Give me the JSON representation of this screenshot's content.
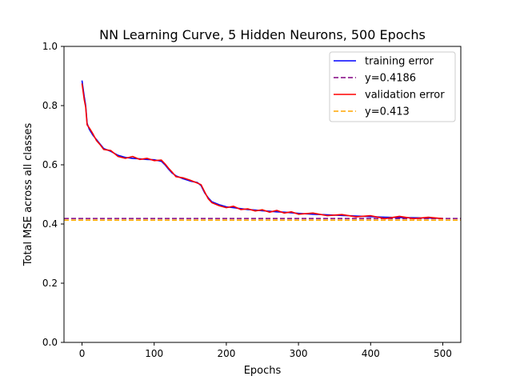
{
  "chart_data": {
    "type": "line",
    "title": "NN Learning Curve, 5 Hidden Neurons, 500 Epochs",
    "xlabel": "Epochs",
    "ylabel": "Total MSE across all classes",
    "xlim": [
      -25,
      525
    ],
    "ylim": [
      0.0,
      1.0
    ],
    "xticks": [
      0,
      100,
      200,
      300,
      400,
      500
    ],
    "xtick_labels": [
      "0",
      "100",
      "200",
      "300",
      "400",
      "500"
    ],
    "yticks": [
      0.0,
      0.2,
      0.4,
      0.6,
      0.8,
      1.0
    ],
    "ytick_labels": [
      "0.0",
      "0.2",
      "0.4",
      "0.6",
      "0.8",
      "1.0"
    ],
    "grid": false,
    "legend_position": "top-right",
    "series": [
      {
        "name": "training error",
        "style": "solid",
        "color": "#0000ff",
        "x": [
          0,
          3,
          5,
          7,
          10,
          15,
          20,
          25,
          30,
          40,
          50,
          60,
          70,
          80,
          90,
          100,
          110,
          115,
          120,
          125,
          130,
          140,
          150,
          160,
          165,
          170,
          175,
          180,
          190,
          200,
          210,
          220,
          230,
          240,
          250,
          260,
          270,
          280,
          290,
          300,
          320,
          340,
          360,
          380,
          400,
          420,
          440,
          460,
          480,
          500
        ],
        "y": [
          0.885,
          0.83,
          0.8,
          0.74,
          0.72,
          0.7,
          0.685,
          0.67,
          0.655,
          0.645,
          0.632,
          0.625,
          0.622,
          0.62,
          0.618,
          0.617,
          0.612,
          0.6,
          0.585,
          0.572,
          0.563,
          0.553,
          0.545,
          0.54,
          0.53,
          0.505,
          0.488,
          0.475,
          0.465,
          0.458,
          0.455,
          0.452,
          0.449,
          0.447,
          0.445,
          0.443,
          0.441,
          0.44,
          0.438,
          0.436,
          0.433,
          0.431,
          0.429,
          0.427,
          0.425,
          0.423,
          0.422,
          0.421,
          0.42,
          0.419
        ]
      },
      {
        "name": "y=0.4186",
        "style": "dashed",
        "color": "#800080",
        "constant": 0.4186
      },
      {
        "name": "validation error",
        "style": "solid",
        "color": "#ff0000",
        "x": [
          0,
          3,
          5,
          7,
          10,
          15,
          20,
          25,
          30,
          40,
          50,
          60,
          70,
          80,
          90,
          100,
          110,
          115,
          120,
          125,
          130,
          140,
          150,
          160,
          165,
          170,
          175,
          180,
          190,
          200,
          210,
          220,
          230,
          240,
          250,
          260,
          270,
          280,
          290,
          300,
          320,
          340,
          360,
          380,
          400,
          420,
          440,
          460,
          480,
          500
        ],
        "y": [
          0.875,
          0.82,
          0.795,
          0.735,
          0.725,
          0.705,
          0.682,
          0.668,
          0.652,
          0.648,
          0.628,
          0.622,
          0.628,
          0.618,
          0.622,
          0.614,
          0.616,
          0.603,
          0.588,
          0.575,
          0.56,
          0.556,
          0.548,
          0.538,
          0.533,
          0.508,
          0.485,
          0.472,
          0.462,
          0.455,
          0.46,
          0.449,
          0.451,
          0.444,
          0.448,
          0.44,
          0.446,
          0.437,
          0.441,
          0.433,
          0.437,
          0.428,
          0.432,
          0.424,
          0.428,
          0.418,
          0.426,
          0.418,
          0.423,
          0.418
        ]
      },
      {
        "name": "y=0.413",
        "style": "dashed",
        "color": "#ffa500",
        "constant": 0.413
      }
    ]
  }
}
